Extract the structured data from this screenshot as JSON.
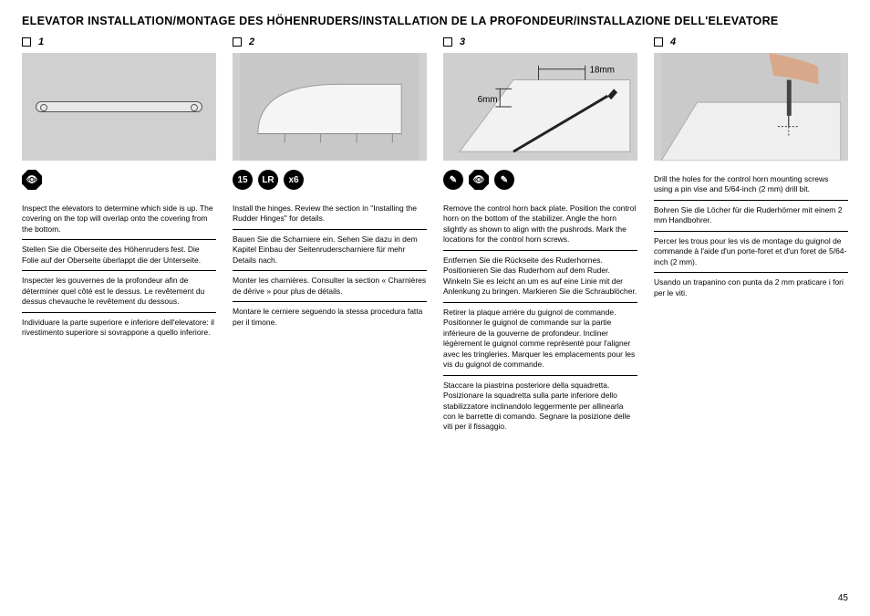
{
  "title": "ELEVATOR INSTALLATION/MONTAGE DES HÖHENRUDERS/INSTALLATION DE LA PROFONDEUR/INSTALLAZIONE DELL'ELEVATORE",
  "page_number": "45",
  "columns": [
    {
      "step": "1",
      "figure": {
        "type": "slot"
      },
      "icons": [
        {
          "shape": "octagon",
          "name": "sight-icon",
          "glyph": "👁"
        }
      ],
      "instructions": [
        "Inspect the elevators to determine which side is up. The covering on the top will overlap onto the covering from the bottom.",
        "Stellen Sie die Oberseite des Höhenruders fest. Die Folie auf der Oberseite überlappt die der Unterseite.",
        "Inspecter les gouvernes de la profondeur afin de déterminer quel côté est le dessus. Le revêtement du dessus chevauche le revêtement du dessous.",
        "Individuare la parte superiore e inferiore dell'elevatore: il rivestimento superiore si sovrappone a quello inferiore."
      ]
    },
    {
      "step": "2",
      "figure": {
        "type": "wing"
      },
      "icons": [
        {
          "shape": "circle",
          "name": "time-icon",
          "glyph": "15"
        },
        {
          "shape": "circle",
          "name": "lr-icon",
          "glyph": "LR"
        },
        {
          "shape": "circle",
          "name": "qty-icon",
          "glyph": "x6"
        }
      ],
      "instructions": [
        "Install the hinges. Review the section in \"Installing the Rudder Hinges\" for details.",
        "Bauen Sie die Scharniere ein. Sehen Sie dazu in dem Kapitel Einbau der Seitenruderscharniere für mehr Details nach.",
        "Monter les charnières. Consulter la section « Charnières de dérive » pour plus de détails.",
        "Montare le cerniere seguendo la stessa procedura fatta per il timone."
      ]
    },
    {
      "step": "3",
      "figure": {
        "type": "measure",
        "dim_a": "18mm",
        "dim_b": "6mm"
      },
      "icons": [
        {
          "shape": "circle",
          "name": "pencil-icon",
          "glyph": "✎"
        },
        {
          "shape": "octagon",
          "name": "sight-icon",
          "glyph": "👁"
        },
        {
          "shape": "circle",
          "name": "pencil-icon",
          "glyph": "✎"
        }
      ],
      "instructions": [
        "Remove the control horn back plate. Position the control horn on the bottom of the stabilizer. Angle the horn slightly as shown to align with the pushrods. Mark the locations for the control horn screws.",
        "Entfernen Sie die Rückseite des Ruderhornes. Positionieren Sie das Ruderhorn auf dem Ruder. Winkeln Sie es leicht an um es auf eine Linie mit der Anlenkung zu bringen. Markieren Sie die Schraublöcher.",
        "Retirer la plaque arrière du guignol de commande. Positionner le guignol de commande sur la partie inférieure de la gouverne de profondeur. Incliner légèrement le guignol comme représenté pour l'aligner avec les tringleries. Marquer les emplacements pour les vis du guignol de commande.",
        "Staccare la piastrina posteriore della squadretta. Posizionare la squadretta sulla parte inferiore dello stabilizzatore inclinandolo leggermente per allinearla con le barrette di comando. Segnare la posizione delle viti per il fissaggio."
      ]
    },
    {
      "step": "4",
      "figure": {
        "type": "drill"
      },
      "icons": [],
      "instructions": [
        "Drill the holes for the control horn mounting screws using a pin vise and 5/64-inch (2 mm) drill bit.",
        "Bohren Sie die Löcher für die Ruderhörner mit einem 2 mm Handbohrer.",
        "Percer les trous pour les vis de montage du guignol de commande à l'aide d'un porte-foret et d'un foret de 5/64-inch (2 mm).",
        "Usando un trapanino con punta da 2 mm praticare i fori per le viti."
      ]
    }
  ]
}
